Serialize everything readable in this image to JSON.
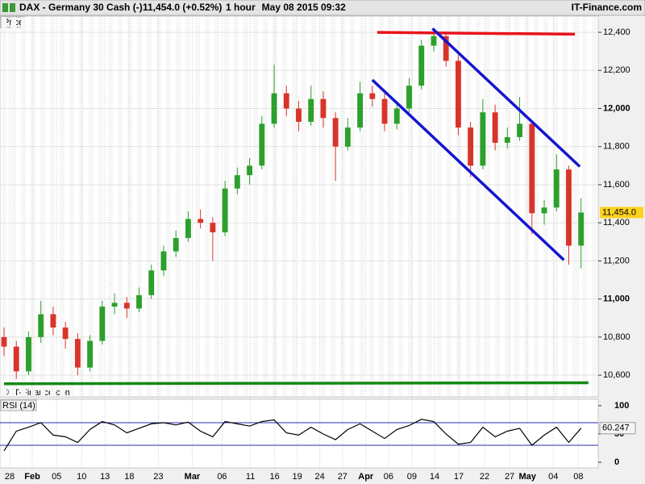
{
  "chart_data": {
    "type": "candlestick",
    "title": "DAX - Germany 30 Cash (-)",
    "quote": "11,454.0 (+0.52%)",
    "interval": "1 hour",
    "timestamp": "May 08 2015 09:32",
    "brand": "IT-Finance.com",
    "panel_label": "Price",
    "copyright": "© IT-Finance.com",
    "up_color": "#2ca02c",
    "down_color": "#d9342b",
    "xlim": [
      -0.33,
      48.4
    ],
    "xticks": [
      {
        "value": 0.46,
        "label": "28"
      },
      {
        "value": 2.3,
        "label": "Feb"
      },
      {
        "value": 4.28,
        "label": "05"
      },
      {
        "value": 6.32,
        "label": "10"
      },
      {
        "value": 8.22,
        "label": "13"
      },
      {
        "value": 10.2,
        "label": "18"
      },
      {
        "value": 12.57,
        "label": "23"
      },
      {
        "value": 15.33,
        "label": "Mar"
      },
      {
        "value": 17.76,
        "label": "06"
      },
      {
        "value": 20.07,
        "label": "11"
      },
      {
        "value": 22.04,
        "label": "16"
      },
      {
        "value": 23.88,
        "label": "19"
      },
      {
        "value": 25.72,
        "label": "24"
      },
      {
        "value": 27.57,
        "label": "27"
      },
      {
        "value": 29.47,
        "label": "Apr"
      },
      {
        "value": 31.32,
        "label": "06"
      },
      {
        "value": 33.22,
        "label": "09"
      },
      {
        "value": 35.07,
        "label": "14"
      },
      {
        "value": 37.04,
        "label": "17"
      },
      {
        "value": 39.14,
        "label": "22"
      },
      {
        "value": 41.18,
        "label": "27"
      },
      {
        "value": 42.63,
        "label": "May"
      },
      {
        "value": 44.74,
        "label": "04"
      },
      {
        "value": 46.78,
        "label": "08"
      }
    ],
    "month_labels": [
      "Feb",
      "Mar",
      "Apr",
      "May"
    ],
    "ylim": [
      10486,
      12485
    ],
    "yticks": [
      {
        "value": 10600,
        "label": "10,600"
      },
      {
        "value": 10800,
        "label": "10,800"
      },
      {
        "value": 11000,
        "label": "11,000"
      },
      {
        "value": 11200,
        "label": "11,200"
      },
      {
        "value": 11400,
        "label": "11,400"
      },
      {
        "value": 11600,
        "label": "11,600"
      },
      {
        "value": 11800,
        "label": "11,800"
      },
      {
        "value": 12000,
        "label": "12,000"
      },
      {
        "value": 12200,
        "label": "12,200"
      },
      {
        "value": 12400,
        "label": "12,400"
      }
    ],
    "last_price": {
      "value": 11454,
      "label": "11,454.0",
      "color": "#ffd21f"
    },
    "open": [
      10800,
      10750,
      10620,
      10800,
      10920,
      10850,
      10790,
      10640,
      10780,
      10960,
      10980,
      10950,
      11020,
      11150,
      11250,
      11320,
      11420,
      11400,
      11350,
      11580,
      11650,
      11700,
      11920,
      12080,
      12000,
      11930,
      12050,
      11950,
      11800,
      11900,
      12080,
      12050,
      11920,
      12000,
      12120,
      12330,
      12380,
      12250,
      11900,
      11700,
      11980,
      11820,
      11850,
      11920,
      11450,
      11480,
      11680,
      11280
    ],
    "high": [
      10850,
      10780,
      10830,
      10990,
      10960,
      10880,
      10820,
      10810,
      10990,
      11030,
      11010,
      11060,
      11180,
      11280,
      11360,
      11460,
      11470,
      11430,
      11620,
      11690,
      11740,
      11960,
      12230,
      12120,
      12040,
      12120,
      12090,
      11980,
      11950,
      12140,
      12120,
      12080,
      12040,
      12160,
      12360,
      12420,
      12400,
      12280,
      11930,
      12050,
      12020,
      11900,
      12060,
      11940,
      11520,
      11760,
      11700,
      11530
    ],
    "low": [
      10700,
      10580,
      10600,
      10770,
      10810,
      10740,
      10600,
      10620,
      10760,
      10920,
      10900,
      10930,
      11000,
      11120,
      11220,
      11300,
      11370,
      11200,
      11330,
      11550,
      11600,
      11680,
      11900,
      11960,
      11880,
      11910,
      11900,
      11620,
      11780,
      11880,
      12010,
      11880,
      11890,
      11980,
      12100,
      12300,
      12220,
      11860,
      11640,
      11680,
      11780,
      11790,
      11830,
      11340,
      11390,
      11460,
      11180,
      11160
    ],
    "close": [
      10750,
      10620,
      10800,
      10920,
      10850,
      10790,
      10640,
      10780,
      10960,
      10980,
      10950,
      11020,
      11150,
      11250,
      11320,
      11420,
      11400,
      11350,
      11580,
      11650,
      11700,
      11920,
      12080,
      12000,
      11930,
      12050,
      11950,
      11800,
      11900,
      12080,
      12050,
      11920,
      12000,
      12120,
      12330,
      12380,
      12250,
      11900,
      11700,
      11980,
      11820,
      11850,
      11920,
      11450,
      11480,
      11680,
      11280,
      11454
    ],
    "trend_lines": [
      {
        "color": "#e8141b",
        "x": [
          30.4,
          46.5
        ],
        "y": [
          12400,
          12390
        ]
      },
      {
        "color": "#1414d2",
        "x": [
          34.9,
          46.9
        ],
        "y": [
          12420,
          11695
        ]
      },
      {
        "color": "#1414d2",
        "x": [
          30.0,
          45.6
        ],
        "y": [
          12150,
          11205
        ]
      },
      {
        "color": "#138a13",
        "x": [
          0,
          47.6
        ],
        "y": [
          10555,
          10560
        ]
      }
    ],
    "rsi": {
      "label": "RSI (14)",
      "color": "#000000",
      "level_color": "#2b2bb0",
      "levels": [
        30,
        70
      ],
      "ylim": [
        -10,
        111.4
      ],
      "yticks": [
        0,
        50,
        100
      ],
      "values": [
        20,
        55,
        62,
        70,
        48,
        45,
        35,
        58,
        72,
        66,
        52,
        60,
        68,
        70,
        66,
        71,
        55,
        45,
        72,
        68,
        64,
        72,
        75,
        52,
        48,
        62,
        50,
        40,
        58,
        68,
        55,
        42,
        58,
        65,
        76,
        72,
        50,
        32,
        35,
        62,
        45,
        55,
        60,
        30,
        48,
        62,
        35,
        60.247
      ],
      "last": 60.247
    }
  }
}
